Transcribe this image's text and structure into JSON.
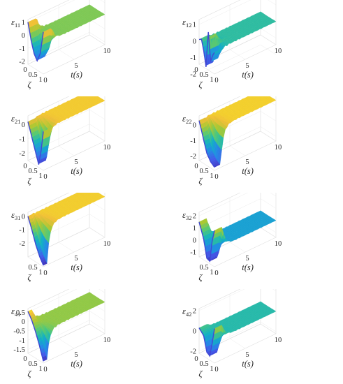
{
  "chart_data": [
    {
      "type": "surface",
      "zlabel": "ε",
      "zlabel_sub": "11",
      "xlabel": "ζ",
      "ylabel": "t(s)",
      "xticks": [
        "0",
        "0.5",
        "1"
      ],
      "yticks": [
        "0",
        "5",
        "10"
      ],
      "zticks": [
        "1",
        "0",
        "-1",
        "-2"
      ],
      "xlim": [
        0,
        1
      ],
      "ylim": [
        0,
        10
      ],
      "zlim": [
        -2.2,
        1.2
      ],
      "profile": {
        "zeta": [
          0,
          0.2,
          0.4,
          0.6,
          0.8,
          1
        ],
        "z": [
          1,
          -0.2,
          -1.1,
          -1.5,
          -0.8,
          1
        ]
      },
      "pulse_end_t": 1.4,
      "steady_z": 0.1,
      "colormap": "parula"
    },
    {
      "type": "surface",
      "zlabel": "ε",
      "zlabel_sub": "12",
      "xlabel": "ζ",
      "ylabel": "t(s)",
      "xticks": [
        "0",
        "0.5",
        "1"
      ],
      "yticks": [
        "0",
        "5",
        "10"
      ],
      "zticks": [
        "1",
        "0",
        "-1",
        "-2"
      ],
      "xlim": [
        0,
        1
      ],
      "ylim": [
        0,
        10
      ],
      "zlim": [
        -1.4,
        1.3
      ],
      "profile": {
        "zeta": [
          0,
          0.15,
          0.3,
          0.45,
          0.6,
          0.75,
          0.9,
          1
        ],
        "z": [
          0.1,
          0.2,
          -0.4,
          -1.3,
          0.9,
          -0.8,
          -0.3,
          -0.1
        ]
      },
      "pulse_end_t": 1.3,
      "steady_z": 0.0,
      "colormap": "parula"
    },
    {
      "type": "surface",
      "zlabel": "ε",
      "zlabel_sub": "21",
      "xlabel": "ζ",
      "ylabel": "t(s)",
      "xticks": [
        "0",
        "0.5",
        "1"
      ],
      "yticks": [
        "0",
        "5",
        "10"
      ],
      "zticks": [
        "0",
        "-1",
        "-2"
      ],
      "xlim": [
        0,
        1
      ],
      "ylim": [
        0,
        10
      ],
      "zlim": [
        -2.5,
        0.6
      ],
      "profile": {
        "zeta": [
          0,
          0.25,
          0.5,
          0.7,
          0.85,
          1
        ],
        "z": [
          0.2,
          -0.7,
          -1.6,
          -2.3,
          -1.3,
          0.2
        ]
      },
      "pulse_end_t": 1.2,
      "steady_z": 0.3,
      "colormap": "parula"
    },
    {
      "type": "surface",
      "zlabel": "ε",
      "zlabel_sub": "22",
      "xlabel": "ζ",
      "ylabel": "t(s)",
      "xticks": [
        "0",
        "0.5",
        "1"
      ],
      "yticks": [
        "0",
        "5",
        "10"
      ],
      "zticks": [
        "0",
        "-1",
        "-2"
      ],
      "xlim": [
        0,
        1
      ],
      "ylim": [
        0,
        10
      ],
      "zlim": [
        -2.3,
        0.6
      ],
      "profile": {
        "zeta": [
          0,
          0.25,
          0.5,
          0.75,
          1
        ],
        "z": [
          0.3,
          -0.6,
          -1.5,
          -1.9,
          -2.1
        ]
      },
      "pulse_end_t": 1.0,
      "steady_z": 0.35,
      "colormap": "parula"
    },
    {
      "type": "surface",
      "zlabel": "ε",
      "zlabel_sub": "31",
      "xlabel": "ζ",
      "ylabel": "t(s)",
      "xticks": [
        "0.5",
        "1"
      ],
      "yticks": [
        "0",
        "5",
        "10"
      ],
      "zticks": [
        "0",
        "-1",
        "-2"
      ],
      "xlim": [
        0,
        1
      ],
      "ylim": [
        0,
        10
      ],
      "zlim": [
        -3.0,
        0.3
      ],
      "profile": {
        "zeta": [
          0,
          0.25,
          0.5,
          0.75,
          1
        ],
        "z": [
          0,
          -0.8,
          -1.7,
          -2.4,
          -2.9
        ]
      },
      "pulse_end_t": 0.6,
      "steady_z": 0.0,
      "colormap": "parula"
    },
    {
      "type": "surface",
      "zlabel": "ε",
      "zlabel_sub": "32",
      "xlabel": "ζ",
      "ylabel": "t(s)",
      "xticks": [
        "0.5",
        "1"
      ],
      "yticks": [
        "0",
        "5",
        "10"
      ],
      "zticks": [
        "2",
        "1",
        "0",
        "-1"
      ],
      "xlim": [
        0,
        1
      ],
      "ylim": [
        0,
        10
      ],
      "zlim": [
        -1.4,
        2.3
      ],
      "profile": {
        "zeta": [
          0,
          0.3,
          0.5,
          0.7,
          0.85,
          1
        ],
        "z": [
          1.5,
          0.3,
          -1.1,
          -1.2,
          0.6,
          1.6
        ]
      },
      "pulse_end_t": 1.3,
      "steady_z": 0.0,
      "colormap": "parula"
    },
    {
      "type": "surface",
      "zlabel": "ε",
      "zlabel_sub": "41",
      "xlabel": "ζ",
      "ylabel": "t(s)",
      "xticks": [
        "0",
        "0.5",
        "1"
      ],
      "yticks": [
        "0",
        "5",
        "10"
      ],
      "zticks": [
        "0.5",
        "0",
        "-0.5",
        "-1",
        "-1.5"
      ],
      "xlim": [
        0,
        1
      ],
      "ylim": [
        0,
        10
      ],
      "zlim": [
        -1.7,
        0.7
      ],
      "profile": {
        "zeta": [
          0,
          0.25,
          0.5,
          0.75,
          1
        ],
        "z": [
          0.55,
          0.2,
          -0.3,
          -0.9,
          -1.6
        ]
      },
      "pulse_end_t": 0.6,
      "steady_z": 0.0,
      "colormap": "parula"
    },
    {
      "type": "surface",
      "zlabel": "ε",
      "zlabel_sub": "42",
      "xlabel": "ζ",
      "ylabel": "t(s)",
      "xticks": [
        "0",
        "0.5",
        "1"
      ],
      "yticks": [
        "0",
        "5",
        "10"
      ],
      "zticks": [
        "2",
        "0",
        "-2"
      ],
      "xlim": [
        0,
        1
      ],
      "ylim": [
        0,
        10
      ],
      "zlim": [
        -2.2,
        2.2
      ],
      "profile": {
        "zeta": [
          0,
          0.3,
          0.5,
          0.7,
          0.85,
          1
        ],
        "z": [
          0.3,
          -0.2,
          -1.6,
          -1.8,
          -0.4,
          1.2
        ]
      },
      "pulse_end_t": 1.3,
      "steady_z": 0.0,
      "colormap": "parula"
    }
  ]
}
